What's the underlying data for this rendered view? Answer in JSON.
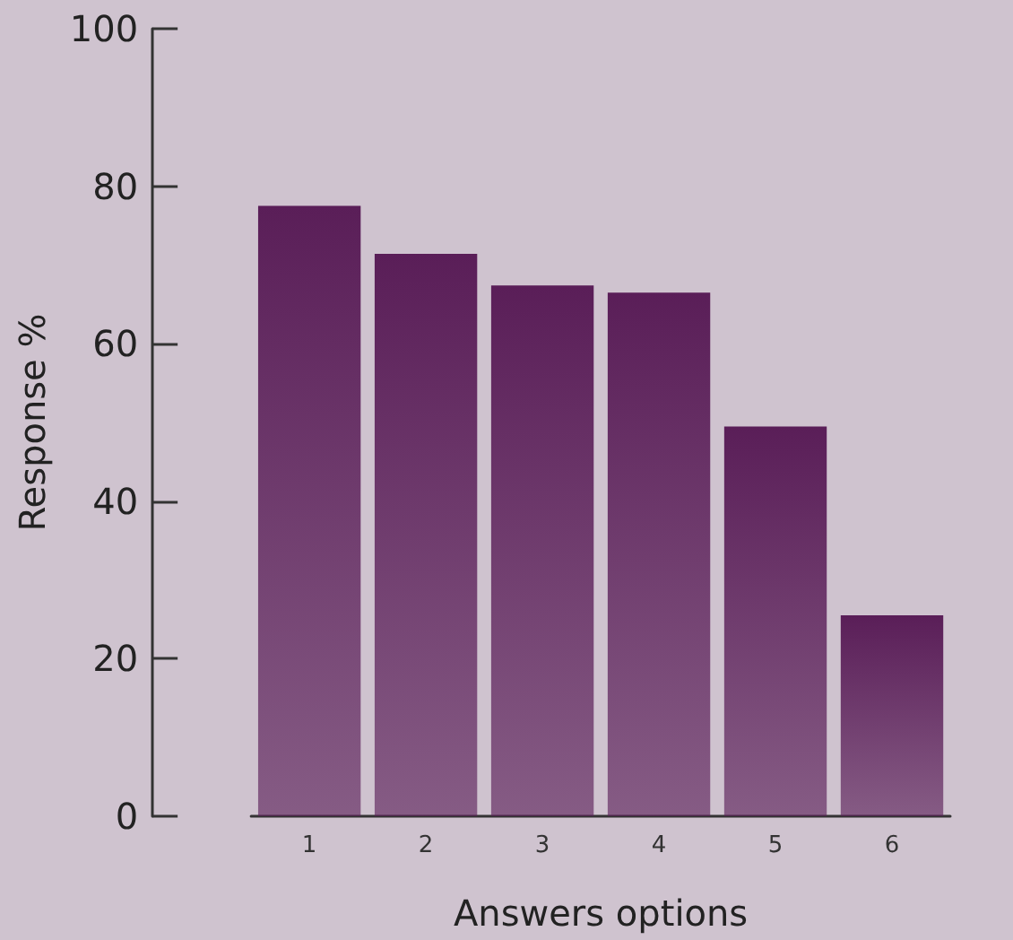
{
  "chart_data": {
    "type": "bar",
    "xlabel": "Answers options",
    "ylabel": "Response %",
    "categories": [
      "1",
      "2",
      "3",
      "4",
      "5",
      "6"
    ],
    "values": [
      77.5,
      71.4,
      67.4,
      66.5,
      49.5,
      25.5
    ],
    "color": "#5a1e58",
    "ylim": [
      0,
      100
    ],
    "yticks": [
      0,
      20,
      40,
      60,
      80,
      100
    ],
    "grid": false
  }
}
